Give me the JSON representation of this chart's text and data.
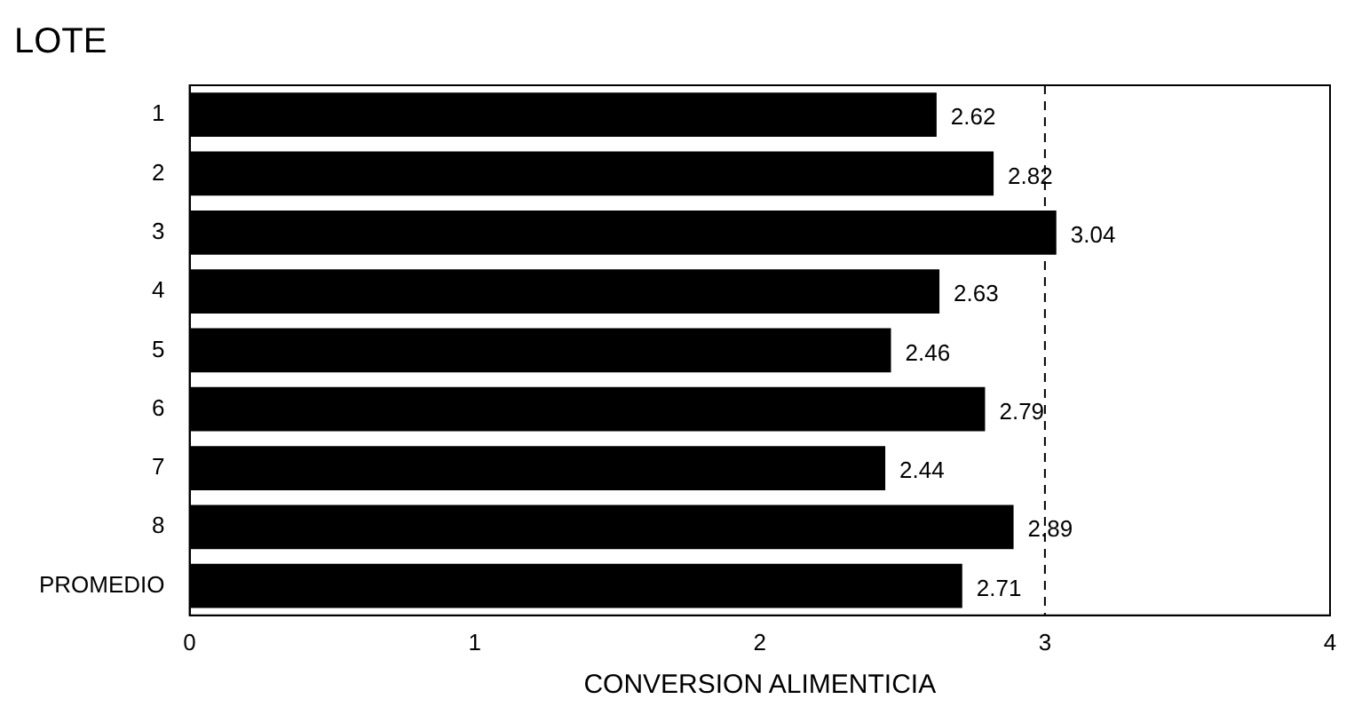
{
  "chart_data": {
    "type": "bar",
    "orientation": "horizontal",
    "title": "LOTE",
    "xlabel": "CONVERSION ALIMENTICIA",
    "categories": [
      "1",
      "2",
      "3",
      "4",
      "5",
      "6",
      "7",
      "8",
      "PROMEDIO"
    ],
    "values": [
      2.62,
      2.82,
      3.04,
      2.63,
      2.46,
      2.79,
      2.44,
      2.89,
      2.71
    ],
    "color": "#000000",
    "xlim": [
      0,
      4
    ],
    "xticks": [
      0,
      1,
      2,
      3,
      4
    ],
    "grid": false,
    "legend": false,
    "data_labels": true,
    "ref_lines": [
      {
        "axis": "x",
        "value": 3,
        "color": "#000000",
        "line_style": "dashed"
      }
    ]
  }
}
